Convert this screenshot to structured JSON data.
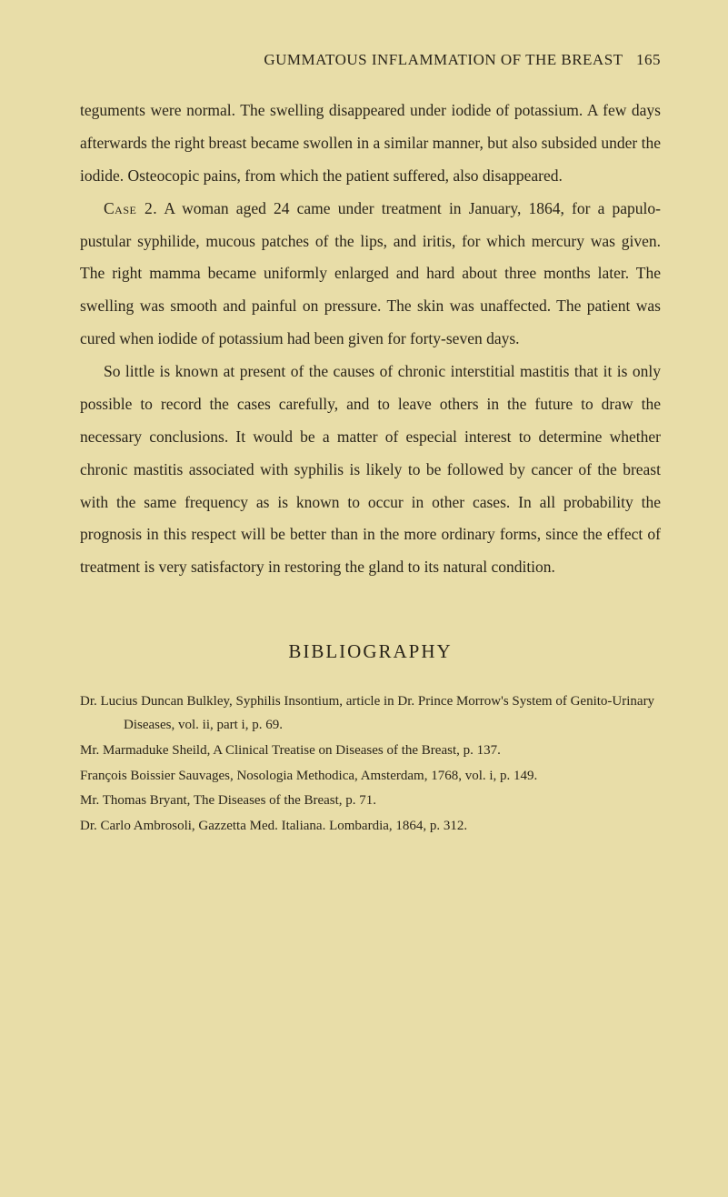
{
  "header": {
    "title": "GUMMATOUS INFLAMMATION OF THE BREAST",
    "page_number": "165"
  },
  "paragraphs": [
    "teguments were normal. The swelling disappeared under iodide of potassium. A few days afterwards the right breast became swollen in a similar manner, but also subsided under the iodide. Osteocopic pains, from which the patient suffered, also disappeared.",
    "Case 2. A woman aged 24 came under treatment in January, 1864, for a papulo-pustular syphilide, mucous patches of the lips, and iritis, for which mercury was given. The right mamma became uniformly enlarged and hard about three months later. The swelling was smooth and painful on pressure. The skin was unaffected. The patient was cured when iodide of potassium had been given for forty-seven days.",
    "So little is known at present of the causes of chronic interstitial mastitis that it is only possible to record the cases carefully, and to leave others in the future to draw the necessary conclusions. It would be a matter of especial interest to determine whether chronic mastitis associated with syphilis is likely to be followed by cancer of the breast with the same frequency as is known to occur in other cases. In all probability the prognosis in this respect will be better than in the more ordinary forms, since the effect of treatment is very satisfactory in restoring the gland to its natural condition."
  ],
  "case_label": "Case",
  "bibliography_title": "BIBLIOGRAPHY",
  "bibliography": [
    "Dr. Lucius Duncan Bulkley, Syphilis Insontium, article in Dr. Prince Morrow's System of Genito-Urinary Diseases, vol. ii, part i, p. 69.",
    "Mr. Marmaduke Sheild, A Clinical Treatise on Diseases of the Breast, p. 137.",
    "François Boissier Sauvages, Nosologia Methodica, Amsterdam, 1768, vol. i, p. 149.",
    "Mr. Thomas Bryant, The Diseases of the Breast, p. 71.",
    "Dr. Carlo Ambrosoli, Gazzetta Med. Italiana. Lombardia, 1864, p. 312."
  ]
}
